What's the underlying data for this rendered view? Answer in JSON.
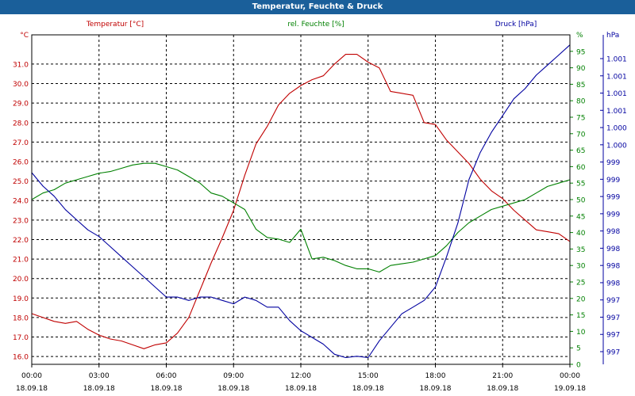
{
  "window": {
    "title": "Temperatur, Feuchte & Druck"
  },
  "chart_data": {
    "type": "line",
    "title": "Temperatur, Feuchte & Druck",
    "x_ticks": [
      {
        "time": "00:00",
        "date": "18.09.18"
      },
      {
        "time": "03:00",
        "date": "18.09.18"
      },
      {
        "time": "06:00",
        "date": "18.09.18"
      },
      {
        "time": "09:00",
        "date": "18.09.18"
      },
      {
        "time": "12:00",
        "date": "18.09.18"
      },
      {
        "time": "15:00",
        "date": "18.09.18"
      },
      {
        "time": "18:00",
        "date": "18.09.18"
      },
      {
        "time": "21:00",
        "date": "18.09.18"
      },
      {
        "time": "00:00",
        "date": "19.09.18"
      }
    ],
    "x_unit": "hours since 18.09.18 00:00",
    "xlim": [
      0,
      24
    ],
    "grid": true,
    "axes": {
      "temperature": {
        "label": "Temperatur [°C]",
        "unit": "°C",
        "side": "left",
        "ylim": [
          15.6,
          32.5
        ],
        "ticks": [
          "16.0",
          "17.0",
          "18.0",
          "19.0",
          "20.0",
          "21.0",
          "22.0",
          "23.0",
          "24.0",
          "25.0",
          "26.0",
          "27.0",
          "28.0",
          "29.0",
          "30.0",
          "31.0"
        ],
        "color": "#c00000"
      },
      "humidity": {
        "label": "rel. Feuchte [%]",
        "unit": "%",
        "side": "right",
        "ylim": [
          0,
          100
        ],
        "ticks": [
          "0",
          "5",
          "10",
          "15",
          "20",
          "25",
          "30",
          "35",
          "40",
          "45",
          "50",
          "55",
          "60",
          "65",
          "70",
          "75",
          "80",
          "85",
          "90",
          "95"
        ],
        "color": "#008000"
      },
      "pressure": {
        "label": "Druck [hPa]",
        "unit": "hPa",
        "side": "right",
        "ylim": [
          996.6,
          1001.5
        ],
        "ticks": [
          "997",
          "997",
          "997",
          "997",
          "998",
          "998",
          "998",
          "998",
          "999",
          "999",
          "999",
          "999",
          "1.000",
          "1.000",
          "1.001",
          "1.001",
          "1.001",
          "1.001"
        ],
        "color": "#0000a0"
      }
    },
    "series": [
      {
        "name": "Temperatur [°C]",
        "axis": "temperature",
        "color": "#c00000",
        "x": [
          0,
          0.5,
          1,
          1.5,
          2,
          2.5,
          3,
          3.5,
          4,
          4.5,
          5,
          5.5,
          6,
          6.5,
          7,
          7.5,
          8,
          8.5,
          9,
          9.5,
          10,
          10.5,
          11,
          11.5,
          12,
          12.5,
          13,
          13.5,
          14,
          14.5,
          15,
          15.5,
          16,
          16.5,
          17,
          17.5,
          18,
          18.5,
          19,
          19.5,
          20,
          20.5,
          21,
          21.5,
          22,
          22.5,
          23,
          23.5,
          24
        ],
        "values": [
          18.2,
          18.0,
          17.8,
          17.7,
          17.8,
          17.4,
          17.1,
          16.9,
          16.8,
          16.6,
          16.4,
          16.6,
          16.7,
          17.2,
          18.0,
          19.4,
          20.8,
          22.1,
          23.5,
          25.3,
          26.9,
          27.8,
          28.9,
          29.5,
          29.9,
          30.2,
          30.4,
          31.0,
          31.5,
          31.5,
          31.1,
          30.8,
          29.6,
          29.5,
          29.4,
          28.0,
          27.9,
          27.1,
          26.5,
          25.9,
          25.1,
          24.5,
          24.1,
          23.5,
          23.0,
          22.5,
          22.4,
          22.3,
          21.9
        ]
      },
      {
        "name": "rel. Feuchte [%]",
        "axis": "humidity",
        "color": "#008000",
        "x": [
          0,
          0.5,
          1,
          1.5,
          2,
          2.5,
          3,
          3.5,
          4,
          4.5,
          5,
          5.5,
          6,
          6.5,
          7,
          7.5,
          8,
          8.5,
          9,
          9.5,
          10,
          10.5,
          11,
          11.5,
          12,
          12.5,
          13,
          13.5,
          14,
          14.5,
          15,
          15.5,
          16,
          16.5,
          17,
          17.5,
          18,
          18.5,
          19,
          19.5,
          20,
          20.5,
          21,
          21.5,
          22,
          22.5,
          23,
          23.5,
          24
        ],
        "values": [
          50,
          52,
          53,
          55,
          56,
          57,
          58,
          58.5,
          59.5,
          60.5,
          61,
          61,
          60,
          59,
          57,
          55,
          52,
          51,
          49,
          47,
          41,
          38.5,
          38,
          37,
          41,
          32,
          32.5,
          31.5,
          30,
          29,
          29,
          28,
          30,
          30.5,
          31,
          32,
          33,
          36,
          40,
          43,
          45,
          47,
          48,
          49,
          50,
          52,
          54,
          55,
          56
        ]
      },
      {
        "name": "Druck [hPa]",
        "axis": "pressure",
        "color": "#0000a0",
        "x": [
          0,
          0.5,
          1,
          1.5,
          2,
          2.5,
          3,
          3.5,
          4,
          4.5,
          5,
          5.5,
          6,
          6.5,
          7,
          7.5,
          8,
          8.5,
          9,
          9.5,
          10,
          10.5,
          11,
          11.5,
          12,
          12.5,
          13,
          13.5,
          14,
          14.5,
          15,
          15.5,
          16,
          16.5,
          17,
          17.5,
          18,
          18.5,
          19,
          19.5,
          20,
          20.5,
          21,
          21.5,
          22,
          22.5,
          23,
          23.5,
          24
        ],
        "values": [
          999.45,
          999.25,
          999.1,
          998.9,
          998.75,
          998.6,
          998.5,
          998.35,
          998.2,
          998.05,
          997.9,
          997.75,
          997.6,
          997.6,
          997.55,
          997.6,
          997.6,
          997.55,
          997.5,
          997.6,
          997.55,
          997.45,
          997.45,
          997.25,
          997.1,
          997.0,
          996.9,
          996.75,
          996.7,
          996.72,
          996.7,
          996.95,
          997.15,
          997.35,
          997.45,
          997.55,
          997.75,
          998.2,
          998.7,
          999.35,
          999.75,
          1000.05,
          1000.3,
          1000.55,
          1000.7,
          1000.9,
          1001.05,
          1001.2,
          1001.35
        ]
      }
    ]
  }
}
